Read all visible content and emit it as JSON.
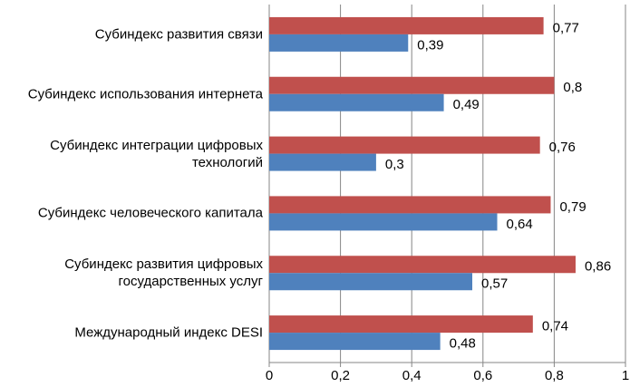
{
  "chart_data": {
    "type": "bar",
    "orientation": "horizontal",
    "categories": [
      "Субиндекс развития связи",
      "Субиндекс использования интернета",
      "Субиндекс интеграции цифровых технологий",
      "Субиндекс человеческого капитала",
      "Субиндекс развития цифровых государственных услуг",
      "Международный индекс DESI"
    ],
    "series": [
      {
        "color": "#c0504d",
        "values": [
          0.77,
          0.8,
          0.76,
          0.79,
          0.86,
          0.74
        ],
        "value_labels": [
          "0,77",
          "0,8",
          "0,76",
          "0,79",
          "0,86",
          "0,74"
        ]
      },
      {
        "color": "#4f81bd",
        "values": [
          0.39,
          0.49,
          0.3,
          0.64,
          0.57,
          0.48
        ],
        "value_labels": [
          "0,39",
          "0,49",
          "0,3",
          "0,64",
          "0,57",
          "0,48"
        ]
      }
    ],
    "xlim": [
      0,
      1
    ],
    "xticks": [
      0,
      {
        "value": 0.2,
        "label": "0,2"
      },
      {
        "value": 0.4,
        "label": "0,4"
      },
      {
        "value": 0.6,
        "label": "0,6"
      },
      {
        "value": 0.8,
        "label": "0,8"
      },
      1
    ],
    "grid": true
  }
}
